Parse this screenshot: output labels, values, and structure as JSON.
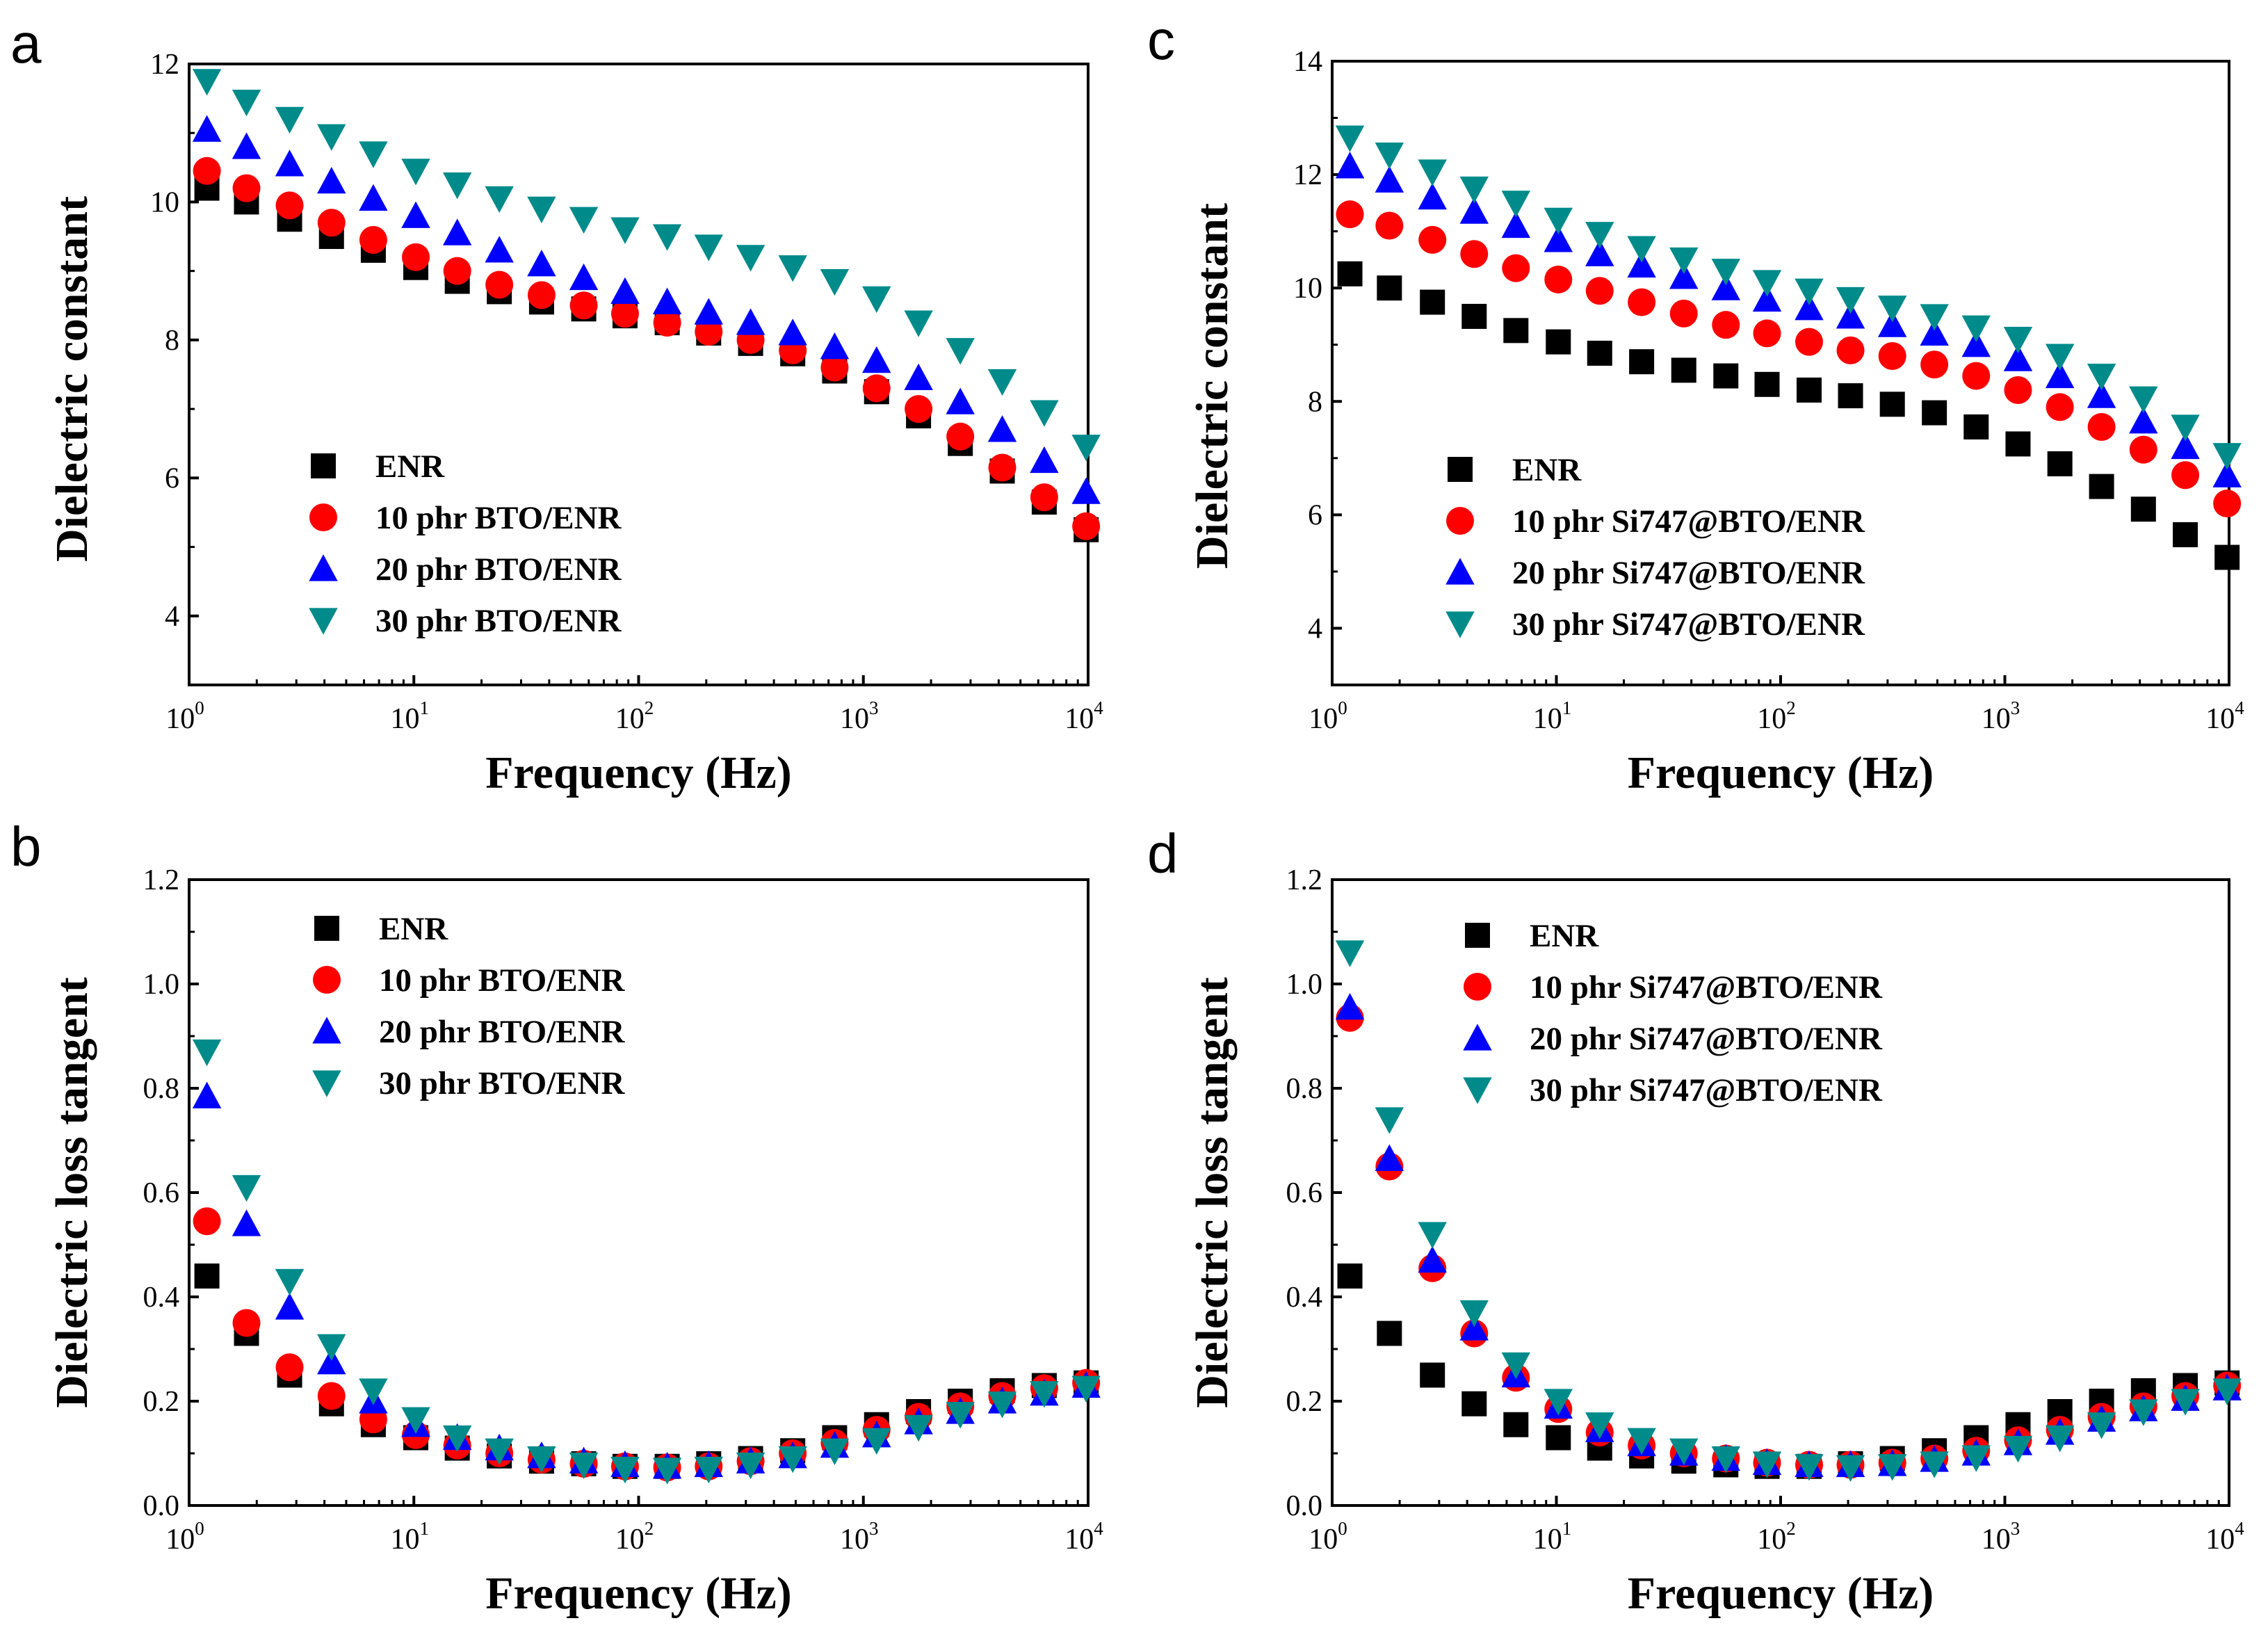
{
  "figure": {
    "colors": {
      "ENR": "#000000",
      "10": "#ff0000",
      "20": "#0000ff",
      "30": "#008b8b"
    }
  },
  "chart_data": [
    {
      "panel": "a",
      "type": "scatter",
      "xscale": "log",
      "xlabel": "Frequency (Hz)",
      "ylabel": "Dielectric constant",
      "xlim": [
        1,
        10000
      ],
      "ylim": [
        3,
        12
      ],
      "yticks": [
        4,
        6,
        8,
        10,
        12
      ],
      "ytick_labels": [
        "4",
        "6",
        "8",
        "10",
        "12"
      ],
      "xticks": [
        1,
        10,
        100,
        1000,
        10000
      ],
      "xtick_labels": [
        {
          "base": "10",
          "exp": "0"
        },
        {
          "base": "10",
          "exp": "1"
        },
        {
          "base": "10",
          "exp": "2"
        },
        {
          "base": "10",
          "exp": "3"
        },
        {
          "base": "10",
          "exp": "4"
        }
      ],
      "legend_position": "lower-left",
      "x": [
        1.2,
        1.8,
        2.8,
        4.3,
        6.6,
        10.2,
        15.6,
        24,
        37,
        57,
        87,
        134,
        205,
        315,
        485,
        745,
        1145,
        1760,
        2700,
        4150,
        6380,
        9800
      ],
      "series": [
        {
          "name": "ENR",
          "marker": "square",
          "values": [
            10.2,
            10.0,
            9.75,
            9.5,
            9.3,
            9.05,
            8.85,
            8.7,
            8.55,
            8.45,
            8.35,
            8.25,
            8.1,
            7.95,
            7.8,
            7.55,
            7.25,
            6.9,
            6.5,
            6.1,
            5.65,
            5.25
          ]
        },
        {
          "name": "10 phr BTO/ENR",
          "marker": "circle",
          "values": [
            10.45,
            10.2,
            9.95,
            9.7,
            9.45,
            9.2,
            9.0,
            8.8,
            8.65,
            8.5,
            8.38,
            8.25,
            8.12,
            8.0,
            7.85,
            7.6,
            7.3,
            7.0,
            6.6,
            6.15,
            5.72,
            5.3
          ]
        },
        {
          "name": "20 phr BTO/ENR",
          "marker": "triangle-up",
          "values": [
            11.05,
            10.8,
            10.55,
            10.3,
            10.05,
            9.8,
            9.55,
            9.3,
            9.1,
            8.9,
            8.7,
            8.55,
            8.4,
            8.25,
            8.1,
            7.9,
            7.7,
            7.45,
            7.1,
            6.7,
            6.25,
            5.8
          ]
        },
        {
          "name": "30 phr BTO/ENR",
          "marker": "triangle-down",
          "values": [
            11.75,
            11.45,
            11.2,
            10.95,
            10.7,
            10.45,
            10.25,
            10.05,
            9.9,
            9.75,
            9.6,
            9.5,
            9.35,
            9.2,
            9.05,
            8.85,
            8.6,
            8.25,
            7.85,
            7.4,
            6.95,
            6.45
          ]
        }
      ]
    },
    {
      "panel": "b",
      "type": "scatter",
      "xscale": "log",
      "xlabel": "Frequency (Hz)",
      "ylabel": "Dielectric loss tangent",
      "xlim": [
        1,
        10000
      ],
      "ylim": [
        0.0,
        1.2
      ],
      "yticks": [
        0.0,
        0.2,
        0.4,
        0.6,
        0.8,
        1.0,
        1.2
      ],
      "ytick_labels": [
        "0.0",
        "0.2",
        "0.4",
        "0.6",
        "0.8",
        "1.0",
        "1.2"
      ],
      "xticks": [
        1,
        10,
        100,
        1000,
        10000
      ],
      "xtick_labels": [
        {
          "base": "10",
          "exp": "0"
        },
        {
          "base": "10",
          "exp": "1"
        },
        {
          "base": "10",
          "exp": "2"
        },
        {
          "base": "10",
          "exp": "3"
        },
        {
          "base": "10",
          "exp": "4"
        }
      ],
      "legend_position": "upper-center",
      "x": [
        1.2,
        1.8,
        2.8,
        4.3,
        6.6,
        10.2,
        15.6,
        24,
        37,
        57,
        87,
        134,
        205,
        315,
        485,
        745,
        1145,
        1760,
        2700,
        4150,
        6380,
        9800
      ],
      "series": [
        {
          "name": "ENR",
          "marker": "square",
          "values": [
            0.44,
            0.33,
            0.25,
            0.195,
            0.155,
            0.13,
            0.11,
            0.095,
            0.085,
            0.08,
            0.075,
            0.075,
            0.08,
            0.09,
            0.105,
            0.13,
            0.155,
            0.18,
            0.2,
            0.22,
            0.23,
            0.235
          ]
        },
        {
          "name": "10 phr BTO/ENR",
          "marker": "circle",
          "values": [
            0.545,
            0.35,
            0.265,
            0.21,
            0.165,
            0.135,
            0.115,
            0.1,
            0.088,
            0.08,
            0.075,
            0.073,
            0.075,
            0.085,
            0.1,
            0.12,
            0.145,
            0.17,
            0.19,
            0.21,
            0.225,
            0.235
          ]
        },
        {
          "name": "20 phr BTO/ENR",
          "marker": "triangle-up",
          "values": [
            0.785,
            0.54,
            0.38,
            0.275,
            0.2,
            0.155,
            0.13,
            0.11,
            0.095,
            0.085,
            0.078,
            0.075,
            0.078,
            0.085,
            0.095,
            0.115,
            0.135,
            0.16,
            0.18,
            0.2,
            0.215,
            0.23
          ]
        },
        {
          "name": "30 phr BTO/ENR",
          "marker": "triangle-down",
          "values": [
            0.87,
            0.61,
            0.43,
            0.305,
            0.22,
            0.165,
            0.13,
            0.105,
            0.09,
            0.078,
            0.07,
            0.068,
            0.07,
            0.078,
            0.09,
            0.105,
            0.125,
            0.15,
            0.175,
            0.195,
            0.215,
            0.225
          ]
        }
      ]
    },
    {
      "panel": "c",
      "type": "scatter",
      "xscale": "log",
      "xlabel": "Frequency (Hz)",
      "ylabel": "Dielectric constant",
      "xlim": [
        1,
        10000
      ],
      "ylim": [
        3,
        14
      ],
      "yticks": [
        4,
        6,
        8,
        10,
        12,
        14
      ],
      "ytick_labels": [
        "4",
        "6",
        "8",
        "10",
        "12",
        "14"
      ],
      "xticks": [
        1,
        10,
        100,
        1000,
        10000
      ],
      "xtick_labels": [
        {
          "base": "10",
          "exp": "0"
        },
        {
          "base": "10",
          "exp": "1"
        },
        {
          "base": "10",
          "exp": "2"
        },
        {
          "base": "10",
          "exp": "3"
        },
        {
          "base": "10",
          "exp": "4"
        }
      ],
      "legend_position": "lower-left",
      "x": [
        1.2,
        1.8,
        2.8,
        4.3,
        6.6,
        10.2,
        15.6,
        24,
        37,
        57,
        87,
        134,
        205,
        315,
        485,
        745,
        1145,
        1760,
        2700,
        4150,
        6380,
        9800
      ],
      "series": [
        {
          "name": "ENR",
          "marker": "square",
          "values": [
            10.25,
            10.0,
            9.75,
            9.5,
            9.25,
            9.05,
            8.85,
            8.7,
            8.55,
            8.45,
            8.3,
            8.2,
            8.1,
            7.95,
            7.8,
            7.55,
            7.25,
            6.9,
            6.5,
            6.1,
            5.65,
            5.25
          ]
        },
        {
          "name": "10 phr Si747@BTO/ENR",
          "marker": "circle",
          "values": [
            11.3,
            11.1,
            10.85,
            10.6,
            10.35,
            10.15,
            9.95,
            9.75,
            9.55,
            9.35,
            9.2,
            9.05,
            8.9,
            8.8,
            8.65,
            8.45,
            8.2,
            7.9,
            7.55,
            7.15,
            6.7,
            6.2
          ]
        },
        {
          "name": "20 phr Si747@BTO/ENR",
          "marker": "triangle-up",
          "values": [
            12.15,
            11.9,
            11.6,
            11.35,
            11.1,
            10.85,
            10.6,
            10.4,
            10.2,
            10.0,
            9.8,
            9.65,
            9.5,
            9.35,
            9.2,
            9.0,
            8.75,
            8.45,
            8.1,
            7.65,
            7.2,
            6.7
          ]
        },
        {
          "name": "30 phr Si747@BTO/ENR",
          "marker": "triangle-down",
          "values": [
            12.65,
            12.35,
            12.05,
            11.75,
            11.5,
            11.2,
            10.95,
            10.7,
            10.5,
            10.3,
            10.1,
            9.95,
            9.8,
            9.65,
            9.5,
            9.3,
            9.1,
            8.8,
            8.45,
            8.05,
            7.55,
            7.05
          ]
        }
      ]
    },
    {
      "panel": "d",
      "type": "scatter",
      "xscale": "log",
      "xlabel": "Frequency (Hz)",
      "ylabel": "Dielectric loss tangent",
      "xlim": [
        1,
        10000
      ],
      "ylim": [
        0.0,
        1.2
      ],
      "yticks": [
        0.0,
        0.2,
        0.4,
        0.6,
        0.8,
        1.0,
        1.2
      ],
      "ytick_labels": [
        "0.0",
        "0.2",
        "0.4",
        "0.6",
        "0.8",
        "1.0",
        "1.2"
      ],
      "xticks": [
        1,
        10,
        100,
        1000,
        10000
      ],
      "xtick_labels": [
        {
          "base": "10",
          "exp": "0"
        },
        {
          "base": "10",
          "exp": "1"
        },
        {
          "base": "10",
          "exp": "2"
        },
        {
          "base": "10",
          "exp": "3"
        },
        {
          "base": "10",
          "exp": "4"
        }
      ],
      "legend_position": "upper-center",
      "x": [
        1.2,
        1.8,
        2.8,
        4.3,
        6.6,
        10.2,
        15.6,
        24,
        37,
        57,
        87,
        134,
        205,
        315,
        485,
        745,
        1145,
        1760,
        2700,
        4150,
        6380,
        9800
      ],
      "series": [
        {
          "name": "ENR",
          "marker": "square",
          "values": [
            0.44,
            0.33,
            0.25,
            0.195,
            0.155,
            0.13,
            0.11,
            0.095,
            0.085,
            0.078,
            0.075,
            0.075,
            0.08,
            0.09,
            0.105,
            0.13,
            0.155,
            0.18,
            0.2,
            0.22,
            0.23,
            0.235
          ]
        },
        {
          "name": "10 phr Si747@BTO/ENR",
          "marker": "circle",
          "values": [
            0.935,
            0.65,
            0.455,
            0.33,
            0.245,
            0.185,
            0.14,
            0.115,
            0.1,
            0.09,
            0.082,
            0.078,
            0.078,
            0.082,
            0.09,
            0.105,
            0.125,
            0.145,
            0.17,
            0.19,
            0.21,
            0.23
          ]
        },
        {
          "name": "20 phr Si747@BTO/ENR",
          "marker": "triangle-up",
          "values": [
            0.955,
            0.665,
            0.47,
            0.34,
            0.25,
            0.19,
            0.145,
            0.118,
            0.1,
            0.09,
            0.082,
            0.078,
            0.078,
            0.08,
            0.088,
            0.1,
            0.12,
            0.14,
            0.165,
            0.185,
            0.205,
            0.225
          ]
        },
        {
          "name": "30 phr Si747@BTO/ENR",
          "marker": "triangle-down",
          "values": [
            1.06,
            0.74,
            0.52,
            0.37,
            0.27,
            0.2,
            0.155,
            0.125,
            0.105,
            0.09,
            0.08,
            0.075,
            0.073,
            0.075,
            0.08,
            0.092,
            0.11,
            0.13,
            0.155,
            0.18,
            0.2,
            0.22
          ]
        }
      ]
    }
  ]
}
